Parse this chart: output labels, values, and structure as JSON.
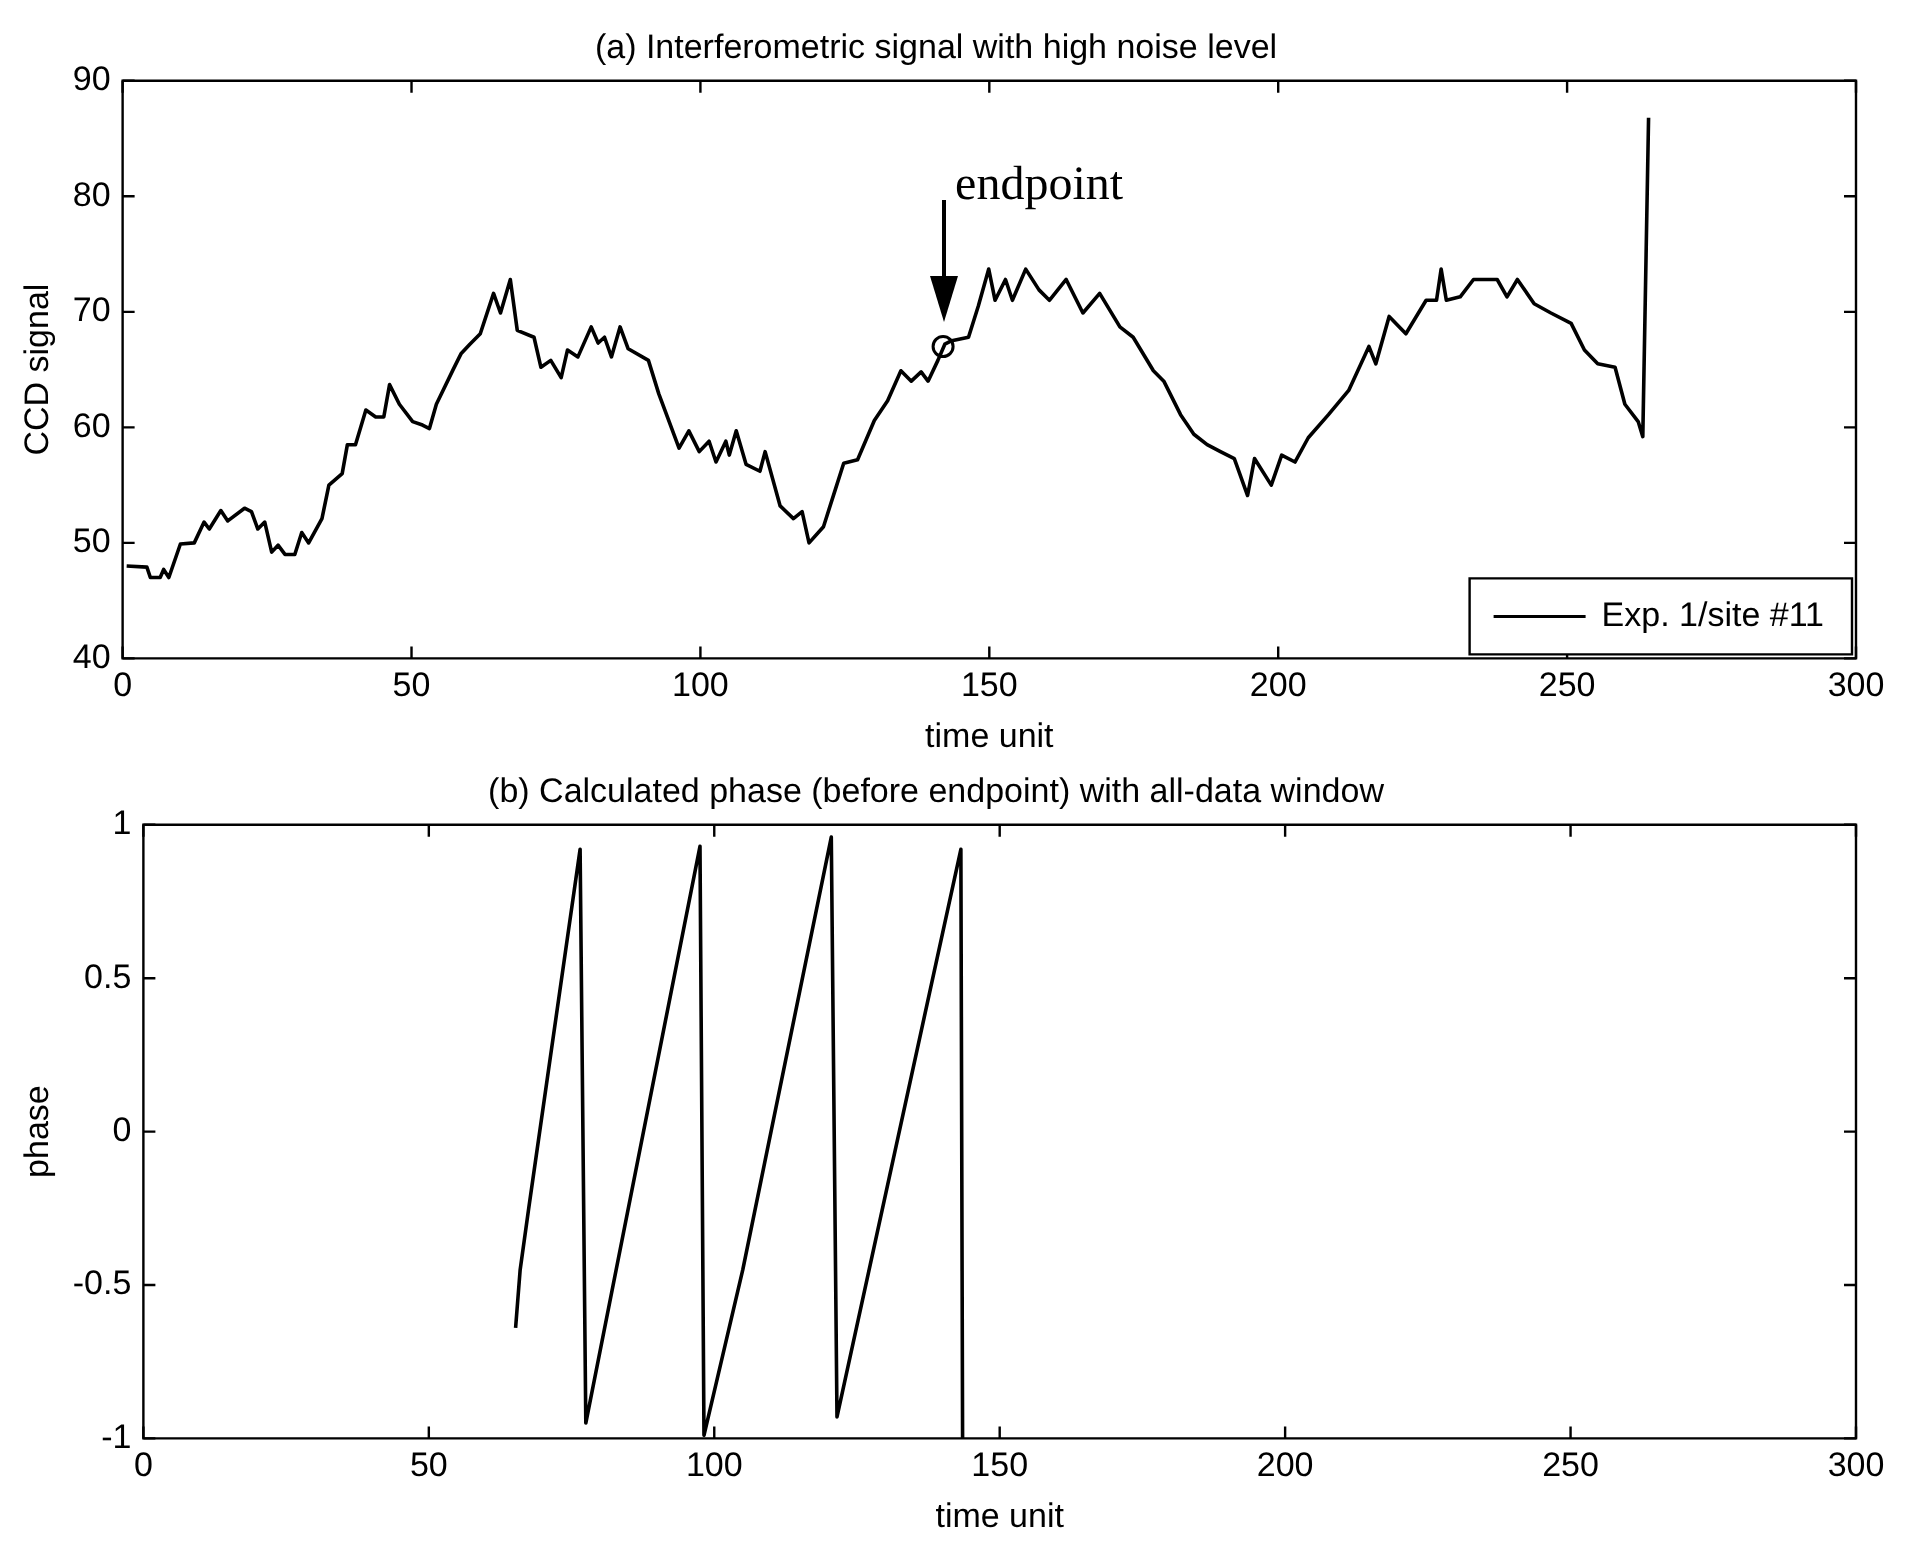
{
  "chart_data": [
    {
      "type": "line",
      "title": "(a) Interferometric signal with high noise level",
      "xlabel": "time unit",
      "ylabel": "CCD signal",
      "xlim": [
        0,
        300
      ],
      "xticks": [
        0,
        50,
        100,
        150,
        200,
        250,
        300
      ],
      "ylim": [
        40,
        90
      ],
      "yticks": [
        40,
        50,
        60,
        70,
        80,
        90
      ],
      "grid": false,
      "legend": "bottom right",
      "marker": "none",
      "line_style": "solid",
      "annotations": [
        {
          "text": "endpoint",
          "x": 142,
          "y": 67
        }
      ],
      "series": [
        {
          "name": "Exp. 1/site #11",
          "color": "#000000",
          "x": [
            0.7,
            4.2,
            4.8,
            6.5,
            7.1,
            8,
            10,
            12.4,
            14.1,
            15,
            17,
            18.2,
            21.1,
            22.3,
            23.4,
            24.6,
            25.8,
            26.9,
            28.1,
            29.8,
            31,
            32.2,
            34.5,
            35.7,
            38,
            38.9,
            40.3,
            42.1,
            43.8,
            45.2,
            46.2,
            47.9,
            50.2,
            51.9,
            53.1,
            54.3,
            57.2,
            58.6,
            60.1,
            61.9,
            64.2,
            65.4,
            67.1,
            68.3,
            71.2,
            72.4,
            74.1,
            75.9,
            77,
            78.8,
            81.1,
            82.3,
            83.4,
            84.6,
            86.1,
            87.5,
            91,
            92.8,
            96.3,
            98,
            99.8,
            101.5,
            102.7,
            104.4,
            105,
            106.2,
            107.9,
            110.3,
            111.2,
            113.8,
            116.1,
            117.6,
            118.8,
            121.3,
            123.4,
            124.8,
            127.2,
            130.1,
            132.4,
            134.7,
            136.5,
            138.2,
            139.4,
            141.1,
            142.3,
            143.5,
            146.4,
            148.1,
            149.9,
            151,
            152.8,
            154,
            156.3,
            158.6,
            160.4,
            163.3,
            166.2,
            169.1,
            172.6,
            174.9,
            178.4,
            180.2,
            183.1,
            185.4,
            187.7,
            190,
            192.4,
            194.7,
            195.9,
            198.8,
            200.6,
            202.9,
            205.2,
            208.7,
            212.2,
            215.7,
            216.9,
            219.2,
            222.1,
            225.6,
            227.4,
            228.2,
            229.1,
            231.5,
            233.8,
            237.9,
            239.6,
            241.4,
            244.3,
            247.2,
            250.7,
            253,
            255.3,
            258.3,
            260,
            262.3,
            263.1,
            264.1
          ],
          "values": [
            48,
            47.9,
            47,
            47,
            47.7,
            47,
            49.9,
            50,
            51.8,
            51.2,
            52.8,
            51.9,
            53,
            52.7,
            51.2,
            51.8,
            49.2,
            49.8,
            49,
            49,
            50.9,
            50,
            52.1,
            55,
            56,
            58.5,
            58.5,
            61.5,
            60.9,
            60.9,
            63.7,
            62,
            60.5,
            60.2,
            59.9,
            62,
            65,
            66.4,
            67.2,
            68.1,
            71.6,
            69.9,
            72.8,
            68.4,
            67.8,
            65.2,
            65.8,
            64.3,
            66.7,
            66.1,
            68.7,
            67.3,
            67.8,
            66.1,
            68.7,
            66.8,
            65.8,
            62.9,
            58.2,
            59.7,
            57.9,
            58.8,
            57,
            58.8,
            57.6,
            59.7,
            56.8,
            56.2,
            57.9,
            53.2,
            52.1,
            52.7,
            50,
            51.4,
            54.7,
            56.9,
            57.2,
            60.6,
            62.3,
            64.9,
            64,
            64.8,
            64,
            65.8,
            67.2,
            67.5,
            67.8,
            70.5,
            73.7,
            71,
            72.8,
            71,
            73.7,
            71.9,
            71,
            72.8,
            69.9,
            71.6,
            68.7,
            67.8,
            64.9,
            64,
            61.1,
            59.4,
            58.5,
            57.9,
            57.3,
            54.1,
            57.3,
            55,
            57.6,
            57,
            59.1,
            61.1,
            63.2,
            67,
            65.5,
            69.6,
            68.1,
            71,
            71,
            73.7,
            71,
            71.3,
            72.8,
            72.8,
            71.3,
            72.8,
            70.7,
            69.9,
            69,
            66.7,
            65.5,
            65.2,
            62,
            60.5,
            59.2,
            86.8
          ]
        }
      ]
    },
    {
      "type": "line",
      "title": "(b) Calculated phase (before endpoint) with all-data window",
      "xlabel": "time unit",
      "ylabel": "phase",
      "xlim": [
        0,
        300
      ],
      "xticks": [
        0,
        50,
        100,
        150,
        200,
        250,
        300
      ],
      "ylim": [
        -1,
        1
      ],
      "yticks": [
        -1,
        -0.5,
        0,
        0.5,
        1
      ],
      "grid": false,
      "legend": false,
      "marker": "none",
      "line_style": "solid",
      "series": [
        {
          "color": "#000000",
          "x": [
            65.2,
            66,
            67.5,
            76.5,
            77.5,
            97.5,
            98.2,
            105,
            120.5,
            121.5,
            143.2,
            143.5
          ],
          "values": [
            -0.64,
            -0.45,
            -0.25,
            0.92,
            -0.95,
            0.93,
            -0.99,
            -0.45,
            0.96,
            -0.93,
            0.92,
            -1
          ]
        }
      ]
    }
  ]
}
